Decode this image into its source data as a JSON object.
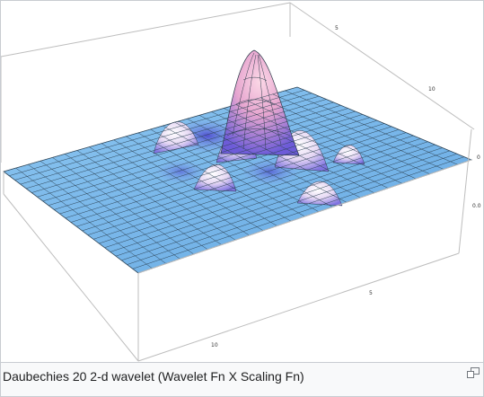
{
  "caption": "Daubechies 20 2-d wavelet (Wavelet Fn X Scaling Fn)",
  "magnify_icon": "enlarge-icon",
  "axes": {
    "back_ticks": [
      "5",
      "10"
    ],
    "right_ticks": [
      "0",
      "0.0"
    ],
    "front_ticks": [
      "5",
      "10"
    ]
  },
  "colors": {
    "surface_base": "#7ab9ea",
    "surface_peak": "#f6c8dc",
    "surface_dark": "#5a4bd6",
    "mesh": "#2b3b4a",
    "box": "#b8b8b8"
  }
}
